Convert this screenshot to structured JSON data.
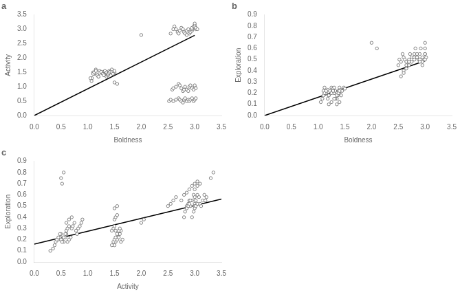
{
  "chart_data": [
    {
      "type": "scatter",
      "title": "a",
      "xlabel": "Boldness",
      "ylabel": "Activity",
      "grid": false,
      "xlim": [
        0,
        3.5
      ],
      "xticks": [
        {
          "value": 0,
          "label": "0.0"
        },
        0.5,
        {
          "value": 1,
          "label": "1.0"
        },
        1.5,
        {
          "value": 2,
          "label": "2.0"
        },
        2.5,
        {
          "value": 3,
          "label": "3.0"
        },
        3.5
      ],
      "ylim": [
        0,
        3.5
      ],
      "yticks": [
        {
          "value": 0,
          "label": "0.0"
        },
        0.5,
        {
          "value": 1,
          "label": "1.0"
        },
        1.5,
        {
          "value": 2,
          "label": "2.0"
        },
        2.5,
        {
          "value": 3,
          "label": "3.0"
        },
        3.5
      ],
      "series": [
        {
          "type": "scatter",
          "marker": "circle",
          "color": "#666666",
          "x": [
            1.08,
            1.1,
            1.12,
            1.15,
            1.18,
            1.2,
            1.22,
            1.25,
            1.28,
            1.3,
            1.32,
            1.33,
            1.35,
            1.35,
            1.36,
            1.37,
            1.38,
            1.4,
            1.4,
            1.42,
            1.43,
            1.45,
            1.48,
            1.5,
            1.05,
            1.07,
            1.1,
            1.12,
            1.15,
            1.18,
            1.2,
            1.22,
            1.25,
            1.28,
            1.3,
            1.32,
            1.35,
            1.38,
            1.4,
            1.42,
            1.45,
            1.47,
            1.5,
            2.55,
            2.6,
            2.62,
            2.65,
            2.68,
            2.7,
            2.72,
            2.75,
            2.78,
            2.8,
            2.82,
            2.85,
            2.85,
            2.88,
            2.9,
            2.92,
            2.95,
            2.95,
            2.95,
            2.98,
            3.0,
            3.0,
            3.0,
            3.0,
            3.02,
            3.02,
            3.05,
            2.58,
            2.6,
            2.65,
            2.7,
            2.72,
            2.75,
            2.78,
            2.8,
            2.82,
            2.85,
            2.88,
            2.9,
            2.92,
            2.95,
            2.98,
            3.0,
            3.0,
            3.02,
            2.52,
            2.55,
            2.6,
            2.65,
            2.7,
            2.72,
            2.75,
            2.78,
            2.8,
            2.82,
            2.85,
            2.88,
            2.9,
            2.92,
            2.95,
            2.98,
            3.0,
            3.02,
            2.0,
            1.5,
            1.55
          ],
          "values": [
            1.3,
            1.5,
            1.45,
            1.6,
            1.4,
            1.35,
            1.55,
            1.5,
            1.48,
            1.52,
            1.45,
            1.4,
            1.35,
            1.5,
            1.42,
            1.45,
            1.4,
            1.55,
            1.48,
            1.52,
            1.5,
            1.6,
            1.45,
            1.5,
            1.3,
            1.2,
            1.45,
            1.5,
            1.55,
            1.4,
            1.35,
            1.48,
            1.52,
            1.45,
            1.4,
            1.55,
            1.5,
            1.45,
            1.48,
            1.52,
            1.5,
            1.45,
            1.55,
            2.85,
            3.0,
            3.1,
            3.0,
            2.9,
            2.85,
            2.95,
            3.05,
            3.0,
            2.9,
            2.85,
            2.8,
            2.95,
            3.0,
            2.85,
            2.9,
            2.95,
            3.0,
            3.05,
            3.1,
            3.15,
            3.2,
            3.05,
            3.1,
            3.0,
            3.05,
            3.0,
            0.9,
            0.95,
            1.0,
            1.1,
            1.05,
            0.95,
            0.85,
            0.9,
            1.0,
            0.9,
            0.85,
            1.0,
            1.05,
            0.95,
            0.9,
            1.0,
            1.05,
            0.95,
            0.5,
            0.55,
            0.5,
            0.55,
            0.6,
            0.55,
            0.5,
            0.45,
            0.55,
            0.6,
            0.5,
            0.55,
            0.5,
            0.55,
            0.6,
            0.5,
            0.55,
            0.6,
            2.8,
            1.15,
            1.1
          ]
        },
        {
          "type": "line",
          "line_style": "solid",
          "color": "black",
          "x": [
            0,
            3
          ],
          "values": [
            0,
            2.79
          ]
        }
      ]
    },
    {
      "type": "scatter",
      "title": "b",
      "xlabel": "Boldness",
      "ylabel": "Exploration",
      "grid": false,
      "xlim": [
        0,
        3.5
      ],
      "xticks": [
        {
          "value": 0,
          "label": "0.0"
        },
        0.5,
        {
          "value": 1,
          "label": "1.0"
        },
        1.5,
        {
          "value": 2,
          "label": "2.0"
        },
        2.5,
        {
          "value": 3,
          "label": "3.0"
        },
        3.5
      ],
      "ylim": [
        0,
        0.9
      ],
      "yticks": [
        {
          "value": 0,
          "label": "0.0"
        },
        0.1,
        0.2,
        0.3,
        0.4,
        0.5,
        0.6,
        0.7,
        0.8,
        0.9
      ],
      "series": [
        {
          "type": "scatter",
          "marker": "circle",
          "color": "#666666",
          "x": [
            1.1,
            1.12,
            1.15,
            1.18,
            1.2,
            1.22,
            1.25,
            1.28,
            1.3,
            1.32,
            1.35,
            1.35,
            1.37,
            1.38,
            1.4,
            1.4,
            1.42,
            1.43,
            1.45,
            1.48,
            1.5,
            1.05,
            1.08,
            1.1,
            1.12,
            1.15,
            1.18,
            1.2,
            1.25,
            1.28,
            1.3,
            1.32,
            1.35,
            1.38,
            1.4,
            2.5,
            2.52,
            2.55,
            2.58,
            2.6,
            2.62,
            2.65,
            2.68,
            2.7,
            2.72,
            2.75,
            2.78,
            2.8,
            2.82,
            2.85,
            2.88,
            2.9,
            2.92,
            2.95,
            2.98,
            3.0,
            3.0,
            3.0,
            3.02,
            2.6,
            2.65,
            2.7,
            2.75,
            2.8,
            2.85,
            2.9,
            2.95,
            3.0,
            2.55,
            2.6,
            2.65,
            2.7,
            2.75,
            2.8,
            2.85,
            2.9,
            2.95,
            3.0,
            2.0,
            2.1,
            1.2,
            1.25,
            1.3,
            1.35,
            1.4
          ],
          "values": [
            0.22,
            0.25,
            0.2,
            0.23,
            0.18,
            0.22,
            0.25,
            0.24,
            0.2,
            0.22,
            0.15,
            0.2,
            0.18,
            0.22,
            0.25,
            0.2,
            0.23,
            0.18,
            0.22,
            0.25,
            0.24,
            0.12,
            0.15,
            0.18,
            0.2,
            0.22,
            0.15,
            0.18,
            0.2,
            0.22,
            0.25,
            0.15,
            0.18,
            0.2,
            0.22,
            0.45,
            0.5,
            0.48,
            0.55,
            0.52,
            0.5,
            0.48,
            0.45,
            0.5,
            0.55,
            0.52,
            0.5,
            0.55,
            0.6,
            0.52,
            0.5,
            0.55,
            0.6,
            0.52,
            0.5,
            0.55,
            0.6,
            0.65,
            0.52,
            0.4,
            0.45,
            0.48,
            0.5,
            0.52,
            0.55,
            0.5,
            0.48,
            0.55,
            0.35,
            0.38,
            0.42,
            0.45,
            0.48,
            0.5,
            0.52,
            0.48,
            0.45,
            0.5,
            0.65,
            0.6,
            0.1,
            0.12,
            0.15,
            0.1,
            0.12
          ]
        },
        {
          "type": "line",
          "line_style": "solid",
          "color": "black",
          "x": [
            0,
            3
          ],
          "values": [
            0,
            0.489
          ]
        }
      ]
    },
    {
      "type": "scatter",
      "title": "c",
      "xlabel": "Activity",
      "ylabel": "Exploration",
      "grid": false,
      "xlim": [
        0,
        3.5
      ],
      "xticks": [
        {
          "value": 0,
          "label": "0.0"
        },
        0.5,
        {
          "value": 1,
          "label": "1.0"
        },
        1.5,
        {
          "value": 2,
          "label": "2.0"
        },
        2.5,
        {
          "value": 3,
          "label": "3.0"
        },
        3.5
      ],
      "ylim": [
        0,
        0.9
      ],
      "yticks": [
        {
          "value": 0,
          "label": "0.0"
        },
        0.1,
        0.2,
        0.3,
        0.4,
        0.5,
        0.6,
        0.7,
        0.8,
        0.9
      ],
      "series": [
        {
          "type": "scatter",
          "marker": "circle",
          "color": "#666666",
          "x": [
            0.45,
            0.48,
            0.5,
            0.52,
            0.55,
            0.58,
            0.6,
            0.62,
            0.65,
            0.68,
            0.7,
            0.72,
            0.75,
            0.78,
            0.8,
            0.82,
            0.85,
            0.88,
            0.9,
            0.3,
            0.35,
            0.38,
            0.4,
            0.42,
            0.45,
            0.48,
            0.5,
            0.52,
            0.55,
            0.58,
            0.6,
            0.62,
            0.65,
            0.5,
            0.52,
            0.55,
            1.45,
            1.48,
            1.5,
            1.52,
            1.55,
            1.58,
            1.6,
            1.62,
            1.65,
            1.5,
            1.52,
            1.55,
            1.58,
            1.6,
            1.62,
            1.45,
            1.48,
            1.5,
            1.52,
            1.55,
            1.58,
            1.6,
            1.5,
            1.52,
            1.55,
            2.85,
            2.88,
            2.9,
            2.92,
            2.95,
            2.98,
            3.0,
            3.0,
            3.0,
            3.02,
            3.05,
            3.08,
            3.1,
            3.12,
            3.15,
            3.18,
            3.2,
            3.22,
            2.8,
            2.82,
            2.85,
            2.88,
            2.9,
            2.92,
            2.95,
            2.98,
            3.0,
            3.02,
            3.05,
            2.75,
            2.8,
            2.85,
            2.9,
            2.95,
            3.0,
            3.05,
            2.5,
            2.55,
            2.6,
            2.65,
            3.0,
            3.05,
            3.1,
            3.3,
            3.35,
            0.6,
            0.65,
            0.7,
            1.5,
            1.55,
            2.0,
            2.05
          ],
          "values": [
            0.2,
            0.22,
            0.25,
            0.2,
            0.18,
            0.22,
            0.25,
            0.18,
            0.2,
            0.22,
            0.3,
            0.32,
            0.35,
            0.28,
            0.25,
            0.3,
            0.32,
            0.35,
            0.38,
            0.1,
            0.12,
            0.15,
            0.18,
            0.2,
            0.22,
            0.25,
            0.2,
            0.18,
            0.22,
            0.25,
            0.28,
            0.3,
            0.32,
            0.75,
            0.7,
            0.8,
            0.28,
            0.3,
            0.32,
            0.28,
            0.22,
            0.25,
            0.28,
            0.18,
            0.2,
            0.15,
            0.18,
            0.2,
            0.22,
            0.25,
            0.28,
            0.15,
            0.18,
            0.2,
            0.22,
            0.25,
            0.28,
            0.3,
            0.38,
            0.4,
            0.42,
            0.5,
            0.52,
            0.55,
            0.5,
            0.55,
            0.6,
            0.58,
            0.52,
            0.5,
            0.55,
            0.6,
            0.58,
            0.52,
            0.5,
            0.55,
            0.6,
            0.55,
            0.58,
            0.4,
            0.45,
            0.48,
            0.5,
            0.52,
            0.55,
            0.4,
            0.45,
            0.48,
            0.5,
            0.52,
            0.55,
            0.6,
            0.62,
            0.65,
            0.68,
            0.7,
            0.72,
            0.5,
            0.52,
            0.55,
            0.58,
            0.65,
            0.68,
            0.7,
            0.75,
            0.8,
            0.35,
            0.38,
            0.4,
            0.48,
            0.5,
            0.35,
            0.38
          ]
        },
        {
          "type": "line",
          "line_style": "solid",
          "color": "black",
          "x": [
            0,
            3.5
          ],
          "values": [
            0.16,
            0.5625
          ]
        }
      ]
    }
  ]
}
